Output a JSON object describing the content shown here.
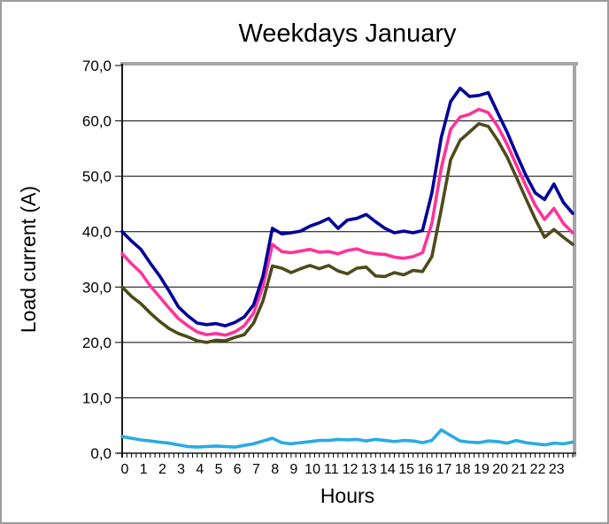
{
  "chart_data": {
    "type": "line",
    "title": "Weekdays January",
    "xlabel": "Hours",
    "ylabel": "Load current (A)",
    "xlim": [
      0,
      24
    ],
    "ylim": [
      0,
      70
    ],
    "grid": "horizontal",
    "legend": "none",
    "ytick_labels": [
      "70,0",
      "60,0",
      "50,0",
      "40,0",
      "30,0",
      "20,0",
      "10,0",
      "0,0"
    ],
    "xtick_labels": [
      "0",
      "1",
      "2",
      "3",
      "4",
      "5",
      "6",
      "7",
      "8",
      "9",
      "10",
      "11",
      "12",
      "13",
      "14",
      "15",
      "16",
      "17",
      "18",
      "19",
      "20",
      "21",
      "22",
      "23"
    ],
    "minor_ticks_per_hour": 4,
    "x_start": 0,
    "x_step": 0.5,
    "frame_color": "#a6a6a6",
    "series": [
      {
        "name": "dark-blue",
        "color": "#000099",
        "values": [
          40.0,
          38.3,
          36.8,
          34.3,
          32.0,
          29.3,
          26.4,
          24.8,
          23.5,
          23.2,
          23.4,
          23.0,
          23.6,
          24.6,
          26.8,
          32.0,
          40.6,
          39.6,
          39.8,
          40.1,
          41.0,
          41.6,
          42.4,
          40.6,
          42.1,
          42.4,
          43.1,
          41.8,
          40.6,
          39.8,
          40.1,
          39.8,
          40.2,
          47.0,
          57.0,
          63.5,
          65.9,
          64.4,
          64.6,
          65.1,
          61.5,
          58.0,
          54.0,
          50.2,
          47.0,
          45.8,
          48.6,
          45.3,
          43.3
        ]
      },
      {
        "name": "magenta",
        "color": "#ff3399",
        "values": [
          36.0,
          34.2,
          32.6,
          30.2,
          28.2,
          26.2,
          24.3,
          23.0,
          21.9,
          21.4,
          21.6,
          21.3,
          21.9,
          23.0,
          25.3,
          30.2,
          37.7,
          36.4,
          36.2,
          36.5,
          36.8,
          36.3,
          36.4,
          36.0,
          36.6,
          36.9,
          36.3,
          36.0,
          35.9,
          35.4,
          35.2,
          35.5,
          36.2,
          41.5,
          51.5,
          58.5,
          60.7,
          61.2,
          62.1,
          61.5,
          59.0,
          55.8,
          52.0,
          48.3,
          44.8,
          42.2,
          44.2,
          41.5,
          39.8
        ]
      },
      {
        "name": "dark-olive",
        "color": "#4d4b1a",
        "values": [
          30.0,
          28.3,
          27.0,
          25.3,
          23.8,
          22.5,
          21.6,
          21.0,
          20.3,
          20.0,
          20.4,
          20.3,
          20.9,
          21.4,
          23.5,
          27.5,
          33.8,
          33.4,
          32.6,
          33.3,
          33.9,
          33.3,
          33.9,
          32.9,
          32.4,
          33.4,
          33.6,
          32.0,
          31.9,
          32.6,
          32.2,
          33.0,
          32.8,
          35.5,
          44.0,
          53.0,
          56.5,
          58.0,
          59.5,
          59.0,
          56.5,
          53.5,
          49.8,
          46.0,
          42.3,
          39.0,
          40.4,
          39.0,
          37.7
        ]
      },
      {
        "name": "light-blue",
        "color": "#29abe2",
        "values": [
          3.0,
          2.7,
          2.4,
          2.2,
          2.0,
          1.8,
          1.5,
          1.2,
          1.1,
          1.2,
          1.3,
          1.2,
          1.1,
          1.4,
          1.7,
          2.2,
          2.7,
          1.9,
          1.7,
          1.9,
          2.1,
          2.3,
          2.3,
          2.5,
          2.4,
          2.5,
          2.2,
          2.5,
          2.3,
          2.1,
          2.3,
          2.2,
          1.9,
          2.3,
          4.2,
          3.2,
          2.2,
          2.0,
          1.9,
          2.2,
          2.1,
          1.8,
          2.3,
          1.9,
          1.7,
          1.5,
          1.8,
          1.7,
          2.0
        ]
      }
    ]
  }
}
